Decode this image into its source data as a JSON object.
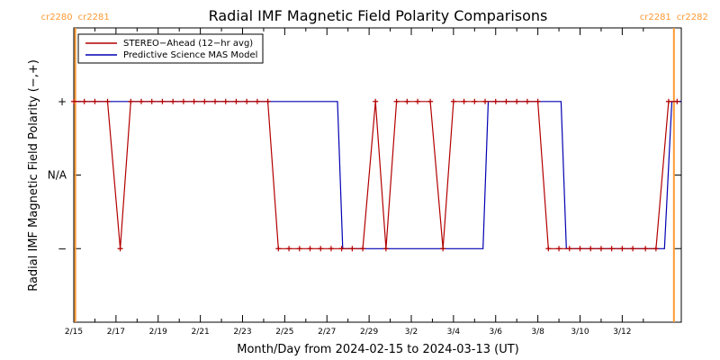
{
  "chart_data": {
    "type": "line",
    "title": "Radial IMF Magnetic Field Polarity Comparisons",
    "xlabel": "Month/Day from 2024-02-15 to 2024-03-13 (UT)",
    "ylabel": "Radial IMF Magnetic Field Polarity (−,+)",
    "xlim": [
      0,
      28.8
    ],
    "ylim": [
      -2,
      2
    ],
    "x_ticks": [
      {
        "x": 0,
        "label": "2/15"
      },
      {
        "x": 2,
        "label": "2/17"
      },
      {
        "x": 4,
        "label": "2/19"
      },
      {
        "x": 6,
        "label": "2/21"
      },
      {
        "x": 8,
        "label": "2/23"
      },
      {
        "x": 10,
        "label": "2/25"
      },
      {
        "x": 12,
        "label": "2/27"
      },
      {
        "x": 14,
        "label": "2/29"
      },
      {
        "x": 16,
        "label": "3/2"
      },
      {
        "x": 18,
        "label": "3/4"
      },
      {
        "x": 20,
        "label": "3/6"
      },
      {
        "x": 22,
        "label": "3/8"
      },
      {
        "x": 24,
        "label": "3/10"
      },
      {
        "x": 26,
        "label": "3/12"
      }
    ],
    "y_ticks": [
      {
        "y": 1,
        "label": "+"
      },
      {
        "y": 0,
        "label": "N/A"
      },
      {
        "y": -1,
        "label": "−"
      }
    ],
    "carrington_markers": [
      {
        "x": 0.07,
        "left": "cr2280",
        "right": "cr2281",
        "color": "#ff9933"
      },
      {
        "x": 28.45,
        "left": "cr2281",
        "right": "cr2282",
        "color": "#ff9933"
      }
    ],
    "legend": {
      "position": "top-left",
      "entries": [
        {
          "name": "STEREO−Ahead (12−hr avg)",
          "color": "#b30000"
        },
        {
          "name": "Predictive Science MAS Model",
          "color": "#0000b3"
        }
      ]
    },
    "series": [
      {
        "name": "STEREO−Ahead (12−hr avg)",
        "color": "#b30000",
        "markers": true,
        "points": [
          [
            0,
            1
          ],
          [
            0.5,
            1
          ],
          [
            1,
            1
          ],
          [
            1.6,
            1
          ],
          [
            2.2,
            -1
          ],
          [
            2.7,
            1
          ],
          [
            3.2,
            1
          ],
          [
            3.7,
            1
          ],
          [
            4.2,
            1
          ],
          [
            4.7,
            1
          ],
          [
            5.2,
            1
          ],
          [
            5.7,
            1
          ],
          [
            6.2,
            1
          ],
          [
            6.7,
            1
          ],
          [
            7.2,
            1
          ],
          [
            7.7,
            1
          ],
          [
            8.2,
            1
          ],
          [
            8.7,
            1
          ],
          [
            9.2,
            1
          ],
          [
            9.7,
            -1
          ],
          [
            10.2,
            -1
          ],
          [
            10.7,
            -1
          ],
          [
            11.2,
            -1
          ],
          [
            11.7,
            -1
          ],
          [
            12.2,
            -1
          ],
          [
            12.7,
            -1
          ],
          [
            13.2,
            -1
          ],
          [
            13.7,
            -1
          ],
          [
            14.3,
            1
          ],
          [
            14.8,
            -1
          ],
          [
            15.3,
            1
          ],
          [
            15.8,
            1
          ],
          [
            16.3,
            1
          ],
          [
            16.9,
            1
          ],
          [
            17.5,
            -1
          ],
          [
            18,
            1
          ],
          [
            18.5,
            1
          ],
          [
            19,
            1
          ],
          [
            19.5,
            1
          ],
          [
            20,
            1
          ],
          [
            20.5,
            1
          ],
          [
            21,
            1
          ],
          [
            21.5,
            1
          ],
          [
            22,
            1
          ],
          [
            22.5,
            -1
          ],
          [
            23,
            -1
          ],
          [
            23.5,
            -1
          ],
          [
            24,
            -1
          ],
          [
            24.5,
            -1
          ],
          [
            25,
            -1
          ],
          [
            25.5,
            -1
          ],
          [
            26,
            -1
          ],
          [
            26.5,
            -1
          ],
          [
            27.1,
            -1
          ],
          [
            27.6,
            -1
          ],
          [
            28.2,
            1
          ],
          [
            28.6,
            1
          ]
        ]
      },
      {
        "name": "Predictive Science MAS Model",
        "color": "#0000b3",
        "markers": false,
        "points": [
          [
            0,
            1
          ],
          [
            12.5,
            1
          ],
          [
            12.75,
            -1
          ],
          [
            19.4,
            -1
          ],
          [
            19.65,
            1
          ],
          [
            23.1,
            1
          ],
          [
            23.35,
            -1
          ],
          [
            28.0,
            -1
          ],
          [
            28.35,
            1
          ],
          [
            28.8,
            1
          ]
        ]
      }
    ]
  }
}
